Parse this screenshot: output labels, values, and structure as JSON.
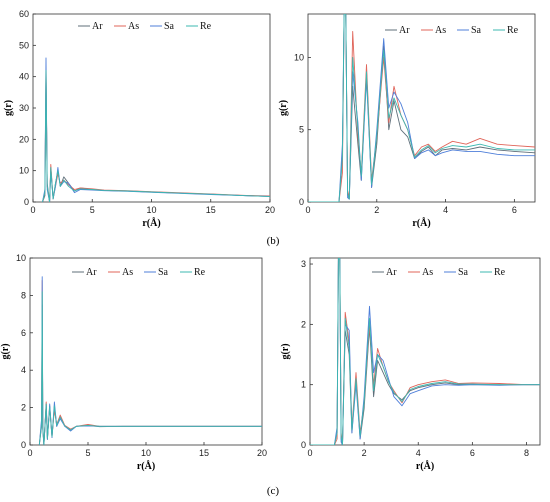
{
  "captions": {
    "b": "(b)",
    "c": "(c)"
  },
  "legend_colors": {
    "Ar": "#5f6f7a",
    "As": "#e0655a",
    "Sa": "#4f7fd9",
    "Re": "#3cb8b0"
  },
  "chart_data": [
    {
      "id": "b-left",
      "type": "line",
      "title": "",
      "xlabel": "r(Å)",
      "ylabel": "g(r)",
      "xlim": [
        0,
        20
      ],
      "ylim": [
        0,
        60
      ],
      "xticks": [
        0,
        5,
        10,
        15,
        20
      ],
      "yticks": [
        0,
        10,
        20,
        30,
        40,
        50,
        60
      ],
      "legend": [
        "Ar",
        "As",
        "Sa",
        "Re"
      ],
      "legend_position": "top",
      "series": [
        {
          "name": "Ar",
          "x": [
            0.8,
            1.0,
            1.1,
            1.2,
            1.4,
            1.5,
            1.7,
            1.9,
            2.1,
            2.3,
            2.6,
            3.0,
            3.5,
            4.0,
            5.0,
            6.0,
            8.0,
            10.0,
            12.0,
            15.0,
            18.0,
            20.0
          ],
          "y": [
            0,
            2,
            40,
            6,
            0,
            11,
            1,
            6,
            10,
            5,
            8,
            6,
            3.5,
            4.5,
            4,
            3.7,
            3.5,
            3.2,
            2.9,
            2.5,
            2.0,
            1.8
          ]
        },
        {
          "name": "As",
          "x": [
            0.8,
            1.0,
            1.1,
            1.2,
            1.4,
            1.5,
            1.7,
            1.9,
            2.1,
            2.3,
            2.6,
            3.0,
            3.5,
            4.0,
            5.0,
            6.0,
            8.0,
            10.0,
            12.0,
            15.0,
            18.0,
            20.0
          ],
          "y": [
            0,
            3,
            44,
            5,
            0,
            12,
            1,
            5,
            9,
            6,
            7,
            5.5,
            4,
            4.5,
            4.2,
            3.8,
            3.6,
            3.3,
            3.0,
            2.6,
            2.1,
            1.9
          ]
        },
        {
          "name": "Sa",
          "x": [
            0.8,
            1.0,
            1.1,
            1.2,
            1.4,
            1.5,
            1.7,
            1.9,
            2.1,
            2.3,
            2.6,
            3.0,
            3.5,
            4.0,
            5.0,
            6.0,
            8.0,
            10.0,
            12.0,
            15.0,
            18.0,
            20.0
          ],
          "y": [
            0,
            4,
            46,
            4,
            0,
            10,
            1,
            5,
            11,
            5,
            6.5,
            6,
            3,
            4,
            3.8,
            3.6,
            3.4,
            3.1,
            2.8,
            2.4,
            2.0,
            1.8
          ]
        },
        {
          "name": "Re",
          "x": [
            0.8,
            1.0,
            1.1,
            1.2,
            1.4,
            1.5,
            1.7,
            1.9,
            2.1,
            2.3,
            2.6,
            3.0,
            3.5,
            4.0,
            5.0,
            6.0,
            8.0,
            10.0,
            12.0,
            15.0,
            18.0,
            20.0
          ],
          "y": [
            0,
            3,
            42,
            5,
            0,
            11,
            1,
            6,
            10,
            5,
            7,
            5,
            3.5,
            4.2,
            4,
            3.7,
            3.5,
            3.2,
            2.9,
            2.5,
            2.0,
            1.8
          ]
        }
      ]
    },
    {
      "id": "b-right",
      "type": "line",
      "title": "",
      "xlabel": "r(Å)",
      "ylabel": "g(r)",
      "xlim": [
        0,
        6.6
      ],
      "ylim": [
        0,
        13
      ],
      "xticks": [
        0,
        2,
        4,
        6
      ],
      "yticks": [
        0,
        5,
        10
      ],
      "legend": [
        "Ar",
        "As",
        "Sa",
        "Re"
      ],
      "legend_position": "top-right",
      "series": [
        {
          "name": "Ar",
          "x": [
            0,
            0.9,
            1.0,
            1.05,
            1.1,
            1.15,
            1.2,
            1.3,
            1.45,
            1.55,
            1.7,
            1.85,
            2.0,
            2.2,
            2.35,
            2.5,
            2.7,
            2.9,
            3.1,
            3.3,
            3.5,
            3.7,
            3.9,
            4.2,
            4.6,
            5.0,
            5.5,
            6.0,
            6.6
          ],
          "y": [
            0,
            0,
            3,
            13,
            13,
            0.5,
            0.2,
            8,
            4,
            1.5,
            9,
            1,
            4,
            10.8,
            5,
            7,
            5,
            4.5,
            3,
            3.5,
            3.8,
            3.2,
            3.6,
            3.7,
            3.6,
            3.8,
            3.6,
            3.5,
            3.4
          ]
        },
        {
          "name": "As",
          "x": [
            0,
            0.9,
            1.0,
            1.05,
            1.1,
            1.15,
            1.2,
            1.3,
            1.45,
            1.55,
            1.7,
            1.85,
            2.0,
            2.2,
            2.35,
            2.5,
            2.7,
            2.9,
            3.1,
            3.3,
            3.5,
            3.7,
            3.9,
            4.2,
            4.6,
            5.0,
            5.5,
            6.0,
            6.6
          ],
          "y": [
            0,
            0,
            2,
            13,
            13,
            0.8,
            0.3,
            11.8,
            4.5,
            2,
            9.5,
            1.5,
            4.5,
            10,
            5.5,
            8,
            6,
            5,
            3.2,
            3.8,
            4,
            3.5,
            3.8,
            4.2,
            4,
            4.4,
            4,
            3.9,
            3.8
          ]
        },
        {
          "name": "Sa",
          "x": [
            0,
            0.9,
            1.0,
            1.05,
            1.1,
            1.15,
            1.2,
            1.3,
            1.45,
            1.55,
            1.7,
            1.85,
            2.0,
            2.2,
            2.35,
            2.5,
            2.7,
            2.9,
            3.1,
            3.3,
            3.5,
            3.7,
            3.9,
            4.2,
            4.6,
            5.0,
            5.5,
            6.0,
            6.6
          ],
          "y": [
            0,
            0,
            4,
            13,
            13,
            0.3,
            0.2,
            9,
            5.5,
            1.5,
            8.5,
            1,
            5,
            11.3,
            6.5,
            7.6,
            6.8,
            5.5,
            3,
            3.4,
            3.6,
            3.2,
            3.4,
            3.6,
            3.5,
            3.5,
            3.3,
            3.2,
            3.2
          ]
        },
        {
          "name": "Re",
          "x": [
            0,
            0.9,
            1.0,
            1.05,
            1.1,
            1.15,
            1.2,
            1.3,
            1.45,
            1.55,
            1.7,
            1.85,
            2.0,
            2.2,
            2.35,
            2.5,
            2.7,
            2.9,
            3.1,
            3.3,
            3.5,
            3.7,
            3.9,
            4.2,
            4.6,
            5.0,
            5.5,
            6.0,
            6.6
          ],
          "y": [
            0,
            0,
            3,
            13,
            13,
            0.6,
            0.2,
            10,
            5,
            1.8,
            9,
            1.2,
            4.6,
            10.5,
            5.8,
            7.2,
            6,
            5,
            3.1,
            3.6,
            3.9,
            3.4,
            3.7,
            3.9,
            3.8,
            4,
            3.7,
            3.6,
            3.6
          ]
        }
      ]
    },
    {
      "id": "c-left",
      "type": "line",
      "title": "",
      "xlabel": "r(Å)",
      "ylabel": "g(r)",
      "xlim": [
        0,
        20
      ],
      "ylim": [
        0,
        10
      ],
      "xticks": [
        0,
        5,
        10,
        15,
        20
      ],
      "yticks": [
        0,
        2,
        4,
        6,
        8,
        10
      ],
      "legend": [
        "Ar",
        "As",
        "Sa",
        "Re"
      ],
      "legend_position": "top",
      "series": [
        {
          "name": "Ar",
          "x": [
            0.8,
            1.0,
            1.05,
            1.1,
            1.2,
            1.4,
            1.5,
            1.7,
            1.9,
            2.1,
            2.3,
            2.6,
            3.0,
            3.5,
            4.0,
            5.0,
            6.0,
            8.0,
            10.0,
            15.0,
            20.0
          ],
          "y": [
            0,
            1,
            7.5,
            1,
            0,
            2.2,
            0.3,
            2,
            0.4,
            2,
            1,
            1.5,
            1,
            0.8,
            1,
            1.05,
            0.98,
            1,
            1,
            1,
            1
          ]
        },
        {
          "name": "As",
          "x": [
            0.8,
            1.0,
            1.05,
            1.1,
            1.2,
            1.4,
            1.5,
            1.7,
            1.9,
            2.1,
            2.3,
            2.6,
            3.0,
            3.5,
            4.0,
            5.0,
            6.0,
            8.0,
            10.0,
            15.0,
            20.0
          ],
          "y": [
            0,
            1.2,
            8.8,
            0.9,
            0,
            2.3,
            0.4,
            2.1,
            0.5,
            1.9,
            1.1,
            1.6,
            1.05,
            0.85,
            1,
            1.1,
            1,
            1,
            1,
            1,
            1
          ]
        },
        {
          "name": "Sa",
          "x": [
            0.8,
            1.0,
            1.05,
            1.1,
            1.2,
            1.4,
            1.5,
            1.7,
            1.9,
            2.1,
            2.3,
            2.6,
            3.0,
            3.5,
            4.0,
            5.0,
            6.0,
            8.0,
            10.0,
            15.0,
            20.0
          ],
          "y": [
            0,
            1.4,
            9.0,
            0.8,
            0,
            2.1,
            0.3,
            2.2,
            0.4,
            2.3,
            1,
            1.4,
            1,
            0.75,
            1,
            1.02,
            1,
            1,
            1,
            1,
            1
          ]
        },
        {
          "name": "Re",
          "x": [
            0.8,
            1.0,
            1.05,
            1.1,
            1.2,
            1.4,
            1.5,
            1.7,
            1.9,
            2.1,
            2.3,
            2.6,
            3.0,
            3.5,
            4.0,
            5.0,
            6.0,
            8.0,
            10.0,
            15.0,
            20.0
          ],
          "y": [
            0,
            1.1,
            8.2,
            0.9,
            0,
            2.2,
            0.35,
            2.05,
            0.45,
            2.1,
            1.05,
            1.5,
            1.02,
            0.8,
            1,
            1.05,
            1,
            1,
            1,
            1,
            1
          ]
        }
      ]
    },
    {
      "id": "c-right",
      "type": "line",
      "title": "",
      "xlabel": "r(Å)",
      "ylabel": "g(r)",
      "xlim": [
        0,
        8.5
      ],
      "ylim": [
        0,
        3.1
      ],
      "xticks": [
        0,
        2,
        4,
        6,
        8
      ],
      "yticks": [
        0,
        1,
        2,
        3
      ],
      "legend": [
        "Ar",
        "As",
        "Sa",
        "Re"
      ],
      "legend_position": "top-right",
      "series": [
        {
          "name": "Ar",
          "x": [
            0,
            0.9,
            1.0,
            1.05,
            1.1,
            1.15,
            1.2,
            1.3,
            1.45,
            1.55,
            1.7,
            1.85,
            2.0,
            2.2,
            2.35,
            2.5,
            2.7,
            2.9,
            3.1,
            3.4,
            3.7,
            4.0,
            4.5,
            5.0,
            5.5,
            6.0,
            7.0,
            8.0,
            8.5
          ],
          "y": [
            0,
            0,
            0.2,
            3.1,
            3.1,
            0.1,
            0,
            1.9,
            1.5,
            0.2,
            1.1,
            0.1,
            0.6,
            1.95,
            0.8,
            1.4,
            1.2,
            1,
            0.85,
            0.75,
            0.9,
            0.95,
            1,
            1.03,
            1,
            1,
            1,
            1,
            1
          ]
        },
        {
          "name": "As",
          "x": [
            0,
            0.9,
            1.0,
            1.05,
            1.1,
            1.15,
            1.2,
            1.3,
            1.45,
            1.55,
            1.7,
            1.85,
            2.0,
            2.2,
            2.35,
            2.5,
            2.7,
            2.9,
            3.1,
            3.4,
            3.7,
            4.0,
            4.5,
            5.0,
            5.5,
            6.0,
            7.0,
            8.0,
            8.5
          ],
          "y": [
            0,
            0,
            0.1,
            3.1,
            3.1,
            0.2,
            0,
            2.2,
            1.7,
            0.3,
            1.2,
            0.2,
            0.7,
            2.0,
            1.0,
            1.6,
            1.3,
            1.05,
            0.9,
            0.7,
            0.95,
            1.0,
            1.05,
            1.08,
            1.02,
            1.03,
            1.02,
            1,
            1
          ]
        },
        {
          "name": "Sa",
          "x": [
            0,
            0.9,
            1.0,
            1.05,
            1.1,
            1.15,
            1.2,
            1.3,
            1.45,
            1.55,
            1.7,
            1.85,
            2.0,
            2.2,
            2.35,
            2.5,
            2.7,
            2.9,
            3.1,
            3.4,
            3.7,
            4.0,
            4.5,
            5.0,
            5.5,
            6.0,
            7.0,
            8.0,
            8.5
          ],
          "y": [
            0,
            0,
            0.3,
            3.1,
            3.1,
            0.05,
            0,
            2.0,
            1.9,
            0.2,
            1.0,
            0.1,
            0.8,
            2.3,
            1.2,
            1.5,
            1.4,
            1.1,
            0.8,
            0.65,
            0.85,
            0.9,
            0.98,
            1.0,
            0.99,
            1,
            0.99,
            1,
            1
          ]
        },
        {
          "name": "Re",
          "x": [
            0,
            0.9,
            1.0,
            1.05,
            1.1,
            1.15,
            1.2,
            1.3,
            1.45,
            1.55,
            1.7,
            1.85,
            2.0,
            2.2,
            2.35,
            2.5,
            2.7,
            2.9,
            3.1,
            3.4,
            3.7,
            4.0,
            4.5,
            5.0,
            5.5,
            6.0,
            7.0,
            8.0,
            8.5
          ],
          "y": [
            0,
            0,
            0.2,
            3.1,
            3.1,
            0.15,
            0,
            2.1,
            1.6,
            0.25,
            1.1,
            0.15,
            0.7,
            2.1,
            0.9,
            1.5,
            1.3,
            1.05,
            0.87,
            0.72,
            0.92,
            0.97,
            1.02,
            1.05,
            1.01,
            1.01,
            1,
            1,
            1
          ]
        }
      ]
    }
  ]
}
